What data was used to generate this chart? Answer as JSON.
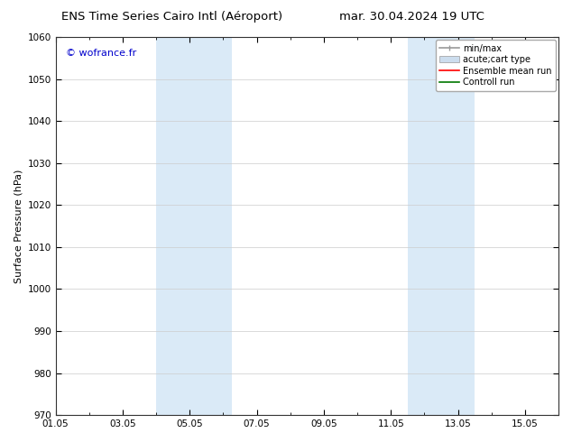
{
  "title_left": "ENS Time Series Cairo Intl (Aéroport)",
  "title_right": "mar. 30.04.2024 19 UTC",
  "ylabel": "Surface Pressure (hPa)",
  "ylim": [
    970,
    1060
  ],
  "yticks": [
    970,
    980,
    990,
    1000,
    1010,
    1020,
    1030,
    1040,
    1050,
    1060
  ],
  "xtick_labels": [
    "01.05",
    "03.05",
    "05.05",
    "07.05",
    "09.05",
    "11.05",
    "13.05",
    "15.05"
  ],
  "xtick_positions": [
    0,
    2,
    4,
    6,
    8,
    10,
    12,
    14
  ],
  "xminor_positions": [
    0,
    1,
    2,
    3,
    4,
    5,
    6,
    7,
    8,
    9,
    10,
    11,
    12,
    13,
    14,
    15
  ],
  "xlim": [
    0,
    15
  ],
  "shaded_regions": [
    {
      "start": 3.0,
      "end": 5.25,
      "color": "#daeaf7"
    },
    {
      "start": 10.5,
      "end": 12.5,
      "color": "#daeaf7"
    }
  ],
  "watermark": "© wofrance.fr",
  "watermark_color": "#0000cc",
  "legend_entries": [
    {
      "label": "min/max",
      "color": "#999999",
      "lw": 1.2,
      "style": "line_with_caps"
    },
    {
      "label": "acute;cart type",
      "color": "#ccddee",
      "edgecolor": "#999999",
      "style": "filled_rect"
    },
    {
      "label": "Ensemble mean run",
      "color": "#ff0000",
      "lw": 1.2
    },
    {
      "label": "Controll run",
      "color": "#007700",
      "lw": 1.2
    }
  ],
  "bg_color": "#ffffff",
  "grid_color": "#cccccc",
  "title_fontsize": 9.5,
  "axis_fontsize": 8,
  "tick_fontsize": 7.5,
  "legend_fontsize": 7,
  "watermark_fontsize": 8
}
